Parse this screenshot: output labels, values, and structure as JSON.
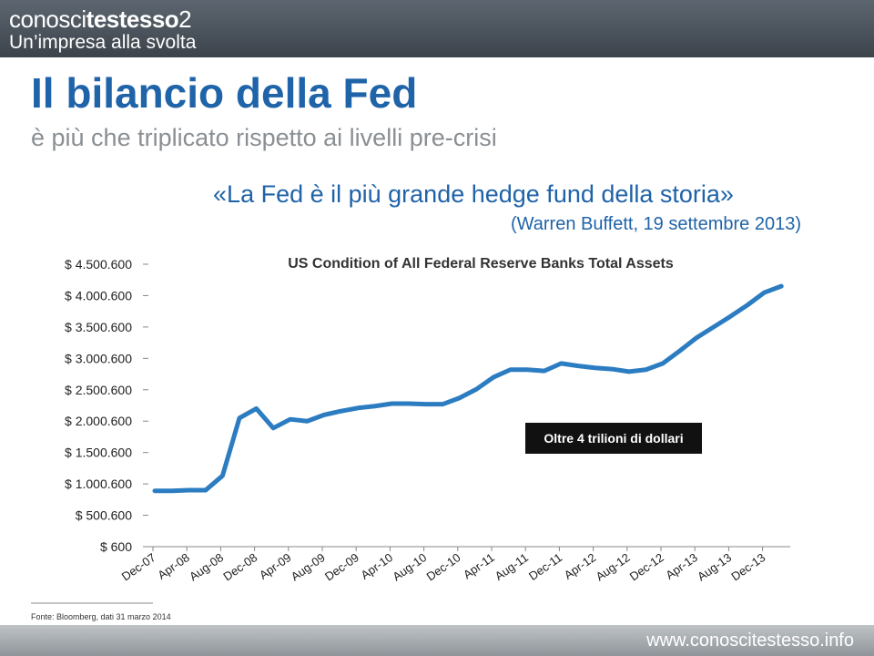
{
  "header": {
    "brand_prefix": "conosci",
    "brand_bold": "testesso",
    "brand_suffix": "2",
    "tagline": "Un’impresa alla svolta"
  },
  "slide": {
    "title": "Il bilancio della Fed",
    "subtitle": "è più che triplicato rispetto ai livelli pre-crisi",
    "quote": "«La Fed è il più grande hedge fund della storia»",
    "attribution": "(Warren Buffett, 19 settembre 2013)",
    "footnote": "Fonte: Bloomberg, dati 31 marzo 2014"
  },
  "footer": {
    "url": "www.conoscitestesso.info"
  },
  "chart_data": {
    "type": "line",
    "title": "US Condition of All Federal Reserve Banks Total Assets",
    "annotation": "Oltre 4 trilioni di dollari",
    "categories": [
      "Dec-07",
      null,
      "Apr-08",
      null,
      "Aug-08",
      null,
      "Dec-08",
      null,
      "Apr-09",
      null,
      "Aug-09",
      null,
      "Dec-09",
      null,
      "Apr-10",
      null,
      "Aug-10",
      null,
      "Dec-10",
      null,
      "Apr-11",
      null,
      "Aug-11",
      null,
      "Dec-11",
      null,
      "Apr-12",
      null,
      "Aug-12",
      null,
      "Dec-12",
      null,
      "Apr-13",
      null,
      "Aug-13",
      null,
      "Dec-13",
      null
    ],
    "values": [
      890000,
      890000,
      900000,
      900000,
      1130000,
      2050000,
      2200000,
      1890000,
      2030000,
      2000000,
      2100000,
      2160000,
      2210000,
      2240000,
      2280000,
      2280000,
      2270000,
      2270000,
      2370000,
      2510000,
      2700000,
      2820000,
      2820000,
      2800000,
      2920000,
      2880000,
      2850000,
      2830000,
      2790000,
      2820000,
      2920000,
      3120000,
      3330000,
      3500000,
      3670000,
      3850000,
      4050000,
      4150000
    ],
    "color": "#2b7cc1",
    "ylim": [
      600,
      4500600
    ],
    "yticks": [
      {
        "value": 600,
        "label": "$ 600"
      },
      {
        "value": 500600,
        "label": "$ 500.600"
      },
      {
        "value": 1000600,
        "label": "$ 1.000.600"
      },
      {
        "value": 1500600,
        "label": "$ 1.500.600"
      },
      {
        "value": 2000600,
        "label": "$ 2.000.600"
      },
      {
        "value": 2500600,
        "label": "$ 2.500.600"
      },
      {
        "value": 3000600,
        "label": "$ 3.000.600"
      },
      {
        "value": 3500600,
        "label": "$ 3.500.600"
      },
      {
        "value": 4000600,
        "label": "$ 4.000.600"
      },
      {
        "value": 4500600,
        "label": "$ 4.500.600"
      }
    ]
  }
}
